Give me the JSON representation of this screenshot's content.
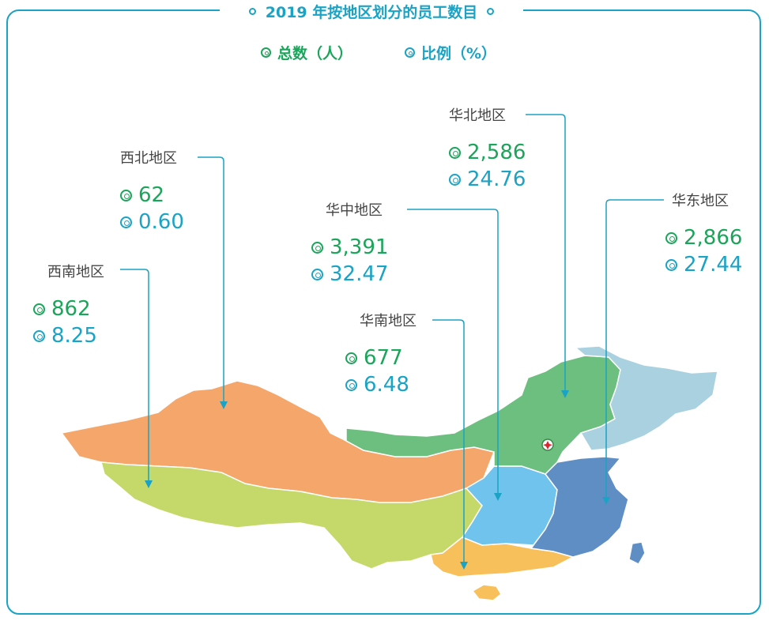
{
  "title": "2019 年按地区划分的员工数目",
  "legend": {
    "total_label": "总数（人）",
    "ratio_label": "比例（%）"
  },
  "colors": {
    "accent": "#1aa3c4",
    "total": "#1aa55a",
    "northwest": "#f5a66a",
    "southwest": "#c5d86a",
    "north": "#6dbf7f",
    "northeast": "#a9d1e0",
    "central": "#6fc3ec",
    "east": "#5f8ec4",
    "south": "#f8c05a",
    "beijing_marker": "#d9262c"
  },
  "regions": {
    "northwest": {
      "name": "西北地区",
      "total": "62",
      "ratio": "0.60"
    },
    "southwest": {
      "name": "西南地区",
      "total": "862",
      "ratio": "8.25"
    },
    "north": {
      "name": "华北地区",
      "total": "2,586",
      "ratio": "24.76"
    },
    "central": {
      "name": "华中地区",
      "total": "3,391",
      "ratio": "32.47"
    },
    "east": {
      "name": "华东地区",
      "total": "2,866",
      "ratio": "27.44"
    },
    "south": {
      "name": "华南地区",
      "total": "677",
      "ratio": "6.48"
    }
  }
}
